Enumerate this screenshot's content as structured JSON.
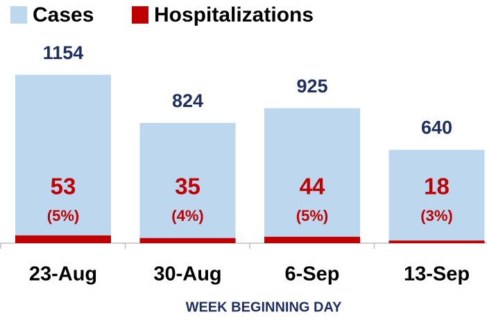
{
  "chart_data": {
    "type": "bar",
    "x_label": "WEEK BEGINNING DAY",
    "categories": [
      "23-Aug",
      "30-Aug",
      "6-Sep",
      "13-Sep"
    ],
    "series": [
      {
        "name": "Cases",
        "color": "#bdd7ee",
        "label_color": "#1f2f5f",
        "values": [
          1154,
          824,
          925,
          640
        ]
      },
      {
        "name": "Hospitalizations",
        "color": "#c00000",
        "label_color": "#c00000",
        "values": [
          53,
          35,
          44,
          18
        ],
        "percent_labels": [
          "(5%)",
          "(4%)",
          "(5%)",
          "(3%)"
        ]
      }
    ],
    "ylim": [
      0,
      1200
    ]
  }
}
